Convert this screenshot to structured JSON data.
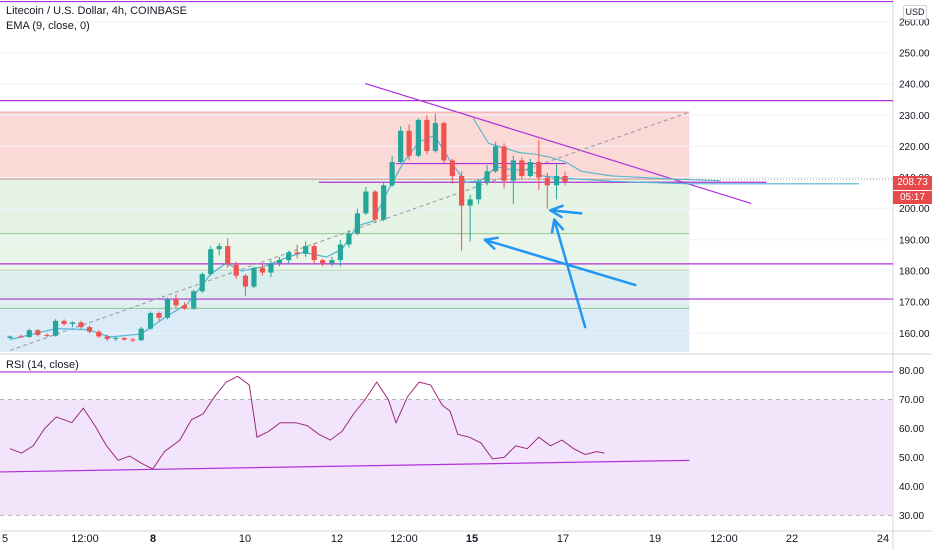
{
  "header": {
    "title": "Litecoin / U.S. Dollar, 4h, COINBASE",
    "ema_label": "EMA (9, close, 0)",
    "rsi_label": "RSI (14, close)",
    "currency": "USD",
    "last_price": "208.73",
    "countdown": "05:17"
  },
  "colors": {
    "bull": "#26a69a",
    "bear": "#ef5350",
    "ema": "#4fb6d3",
    "purple": "#b02fd9",
    "rsi_line": "#9c2a7a",
    "red_zone": "#fbd9d7",
    "green_zone": "#e5f3e4",
    "teal_zone": "#dcefee",
    "blue_zone": "#dcebf8",
    "rsi_band": "#f2e5fb",
    "arrow": "#2196f3",
    "price_tag": "#e64a4a"
  },
  "chart_data": {
    "type": "candlestick",
    "price_axis": {
      "ticks": [
        "260.00",
        "250.00",
        "240.00",
        "230.00",
        "220.00",
        "210.00",
        "200.00",
        "190.00",
        "180.00",
        "170.00",
        "160.00"
      ],
      "ylim": [
        154,
        267
      ]
    },
    "rsi_axis": {
      "ticks": [
        "80.00",
        "70.00",
        "60.00",
        "50.00",
        "40.00",
        "30.00"
      ],
      "ylim": [
        26,
        85
      ]
    },
    "time_axis": {
      "ticks": [
        "5",
        "12:00",
        "8",
        "10",
        "12",
        "12:00",
        "15",
        "17",
        "19",
        "12:00",
        "22",
        "24"
      ]
    },
    "candles": [
      [
        0.0,
        158.5,
        159.3,
        158.2,
        159.0
      ],
      [
        1.4,
        159.0,
        159.6,
        158.5,
        158.8
      ],
      [
        2.5,
        158.8,
        161.5,
        158.6,
        161.0
      ],
      [
        3.6,
        161.0,
        161.3,
        159.0,
        159.5
      ],
      [
        4.8,
        159.5,
        160.0,
        158.7,
        159.2
      ],
      [
        5.9,
        159.2,
        164.5,
        159.0,
        164.0
      ],
      [
        7.0,
        164.0,
        164.5,
        162.5,
        163.0
      ],
      [
        8.1,
        163.0,
        163.8,
        162.0,
        163.5
      ],
      [
        9.2,
        163.5,
        164.0,
        161.5,
        162.0
      ],
      [
        10.3,
        162.0,
        162.5,
        160.0,
        160.5
      ],
      [
        11.5,
        160.5,
        161.0,
        158.5,
        159.0
      ],
      [
        12.6,
        159.0,
        159.5,
        157.5,
        158.2
      ],
      [
        13.7,
        158.2,
        159.0,
        157.5,
        158.5
      ],
      [
        14.8,
        158.5,
        158.8,
        157.6,
        158.0
      ],
      [
        15.9,
        158.0,
        158.5,
        157.2,
        157.8
      ],
      [
        17.0,
        157.8,
        162.0,
        157.5,
        161.5
      ],
      [
        18.2,
        161.5,
        167.0,
        161.0,
        166.5
      ],
      [
        19.3,
        166.5,
        167.0,
        164.0,
        165.0
      ],
      [
        20.4,
        165.0,
        171.5,
        164.5,
        171.0
      ],
      [
        21.5,
        171.0,
        172.5,
        168.0,
        169.0
      ],
      [
        22.6,
        169.0,
        170.0,
        167.5,
        168.0
      ],
      [
        23.8,
        168.0,
        174.0,
        167.5,
        173.5
      ],
      [
        24.9,
        173.5,
        179.5,
        173.0,
        179.0
      ],
      [
        26.0,
        179.0,
        188.0,
        178.5,
        187.0
      ],
      [
        27.1,
        187.0,
        189.0,
        185.0,
        188.0
      ],
      [
        28.2,
        188.0,
        190.5,
        181.0,
        182.0
      ],
      [
        29.3,
        182.0,
        183.0,
        177.5,
        178.5
      ],
      [
        30.5,
        178.5,
        179.0,
        172.0,
        175.0
      ],
      [
        31.6,
        175.0,
        181.5,
        174.5,
        181.0
      ],
      [
        32.7,
        181.0,
        182.0,
        178.5,
        179.5
      ],
      [
        33.8,
        179.5,
        183.5,
        178.0,
        182.5
      ],
      [
        34.9,
        182.5,
        184.5,
        181.5,
        183.5
      ],
      [
        36.1,
        183.5,
        186.5,
        182.5,
        186.0
      ],
      [
        37.2,
        186.0,
        188.5,
        184.0,
        185.5
      ],
      [
        38.3,
        185.5,
        189.5,
        184.5,
        188.0
      ],
      [
        39.4,
        188.0,
        189.0,
        182.5,
        183.5
      ],
      [
        40.5,
        183.5,
        184.0,
        181.5,
        182.5
      ],
      [
        41.7,
        182.5,
        184.5,
        181.5,
        183.5
      ],
      [
        42.8,
        183.5,
        190.0,
        181.5,
        188.5
      ],
      [
        43.9,
        188.5,
        193.0,
        187.5,
        192.0
      ],
      [
        45.0,
        192.0,
        200.0,
        191.5,
        198.5
      ],
      [
        46.1,
        198.5,
        207.0,
        198.0,
        205.5
      ],
      [
        47.3,
        205.5,
        206.0,
        195.5,
        196.5
      ],
      [
        48.4,
        196.5,
        208.5,
        196.0,
        207.5
      ],
      [
        49.5,
        207.5,
        217.0,
        207.0,
        215.0
      ],
      [
        50.6,
        215.0,
        226.5,
        214.5,
        225.0
      ],
      [
        51.7,
        225.0,
        227.0,
        215.5,
        217.0
      ],
      [
        52.9,
        217.0,
        229.0,
        216.5,
        228.5
      ],
      [
        54.0,
        228.5,
        230.0,
        217.5,
        218.5
      ],
      [
        55.1,
        218.5,
        230.5,
        218.0,
        227.5
      ],
      [
        56.2,
        227.5,
        228.0,
        214.5,
        215.5
      ],
      [
        57.3,
        215.5,
        216.0,
        208.0,
        210.5
      ],
      [
        58.5,
        210.5,
        212.0,
        186.5,
        201.0
      ],
      [
        59.6,
        201.0,
        204.5,
        189.5,
        203.0
      ],
      [
        60.7,
        203.0,
        209.5,
        201.5,
        208.5
      ],
      [
        61.8,
        208.5,
        214.0,
        207.5,
        212.0
      ],
      [
        62.9,
        212.0,
        221.5,
        211.5,
        220.0
      ],
      [
        64.0,
        220.0,
        221.0,
        206.5,
        209.0
      ],
      [
        65.2,
        209.0,
        217.0,
        201.5,
        215.5
      ],
      [
        66.3,
        215.5,
        216.5,
        209.5,
        210.5
      ],
      [
        67.4,
        210.5,
        216.0,
        210.0,
        215.0
      ],
      [
        68.5,
        215.0,
        222.0,
        206.0,
        210.0
      ],
      [
        69.6,
        210.0,
        211.5,
        200.0,
        207.5
      ],
      [
        70.8,
        207.5,
        214.5,
        203.0,
        210.5
      ],
      [
        71.9,
        210.5,
        212.0,
        207.5,
        208.7
      ]
    ],
    "ema": [
      [
        0,
        158.0
      ],
      [
        6,
        161.5
      ],
      [
        10,
        161.2
      ],
      [
        13,
        158.8
      ],
      [
        17,
        159.8
      ],
      [
        20,
        165.0
      ],
      [
        23,
        169.5
      ],
      [
        26,
        179.0
      ],
      [
        28,
        182.5
      ],
      [
        30,
        180.0
      ],
      [
        33,
        181.5
      ],
      [
        36,
        184.5
      ],
      [
        38,
        186.0
      ],
      [
        41,
        184.5
      ],
      [
        43,
        187.0
      ],
      [
        45,
        194.5
      ],
      [
        47,
        196.0
      ],
      [
        49,
        206.0
      ],
      [
        51,
        215.0
      ],
      [
        53,
        221.5
      ],
      [
        55,
        223.5
      ],
      [
        57,
        215.5
      ],
      [
        59,
        208.5
      ],
      [
        61,
        209.0
      ],
      [
        63,
        213.5
      ],
      [
        65,
        212.5
      ],
      [
        67,
        212.5
      ],
      [
        69,
        210.5
      ],
      [
        71,
        210.0
      ],
      [
        72,
        209.8
      ],
      [
        78,
        208.8
      ],
      [
        88,
        208.0
      ],
      [
        110,
        208.0
      ]
    ],
    "rsi": [
      [
        0,
        53
      ],
      [
        1.5,
        51.5
      ],
      [
        3,
        54
      ],
      [
        4.5,
        60
      ],
      [
        6,
        64
      ],
      [
        8,
        62
      ],
      [
        9.5,
        67
      ],
      [
        11,
        61
      ],
      [
        12.5,
        54
      ],
      [
        14,
        49
      ],
      [
        15.5,
        50.5
      ],
      [
        17,
        48
      ],
      [
        18.5,
        46
      ],
      [
        20,
        52
      ],
      [
        22,
        56
      ],
      [
        23.5,
        63
      ],
      [
        25,
        65
      ],
      [
        26.5,
        71
      ],
      [
        28,
        76
      ],
      [
        29.5,
        78
      ],
      [
        31,
        75
      ],
      [
        32,
        57
      ],
      [
        33.5,
        59
      ],
      [
        35,
        62
      ],
      [
        37,
        62
      ],
      [
        38.5,
        61
      ],
      [
        40,
        58
      ],
      [
        41.5,
        56
      ],
      [
        43,
        59
      ],
      [
        44.5,
        65
      ],
      [
        46,
        70
      ],
      [
        47.5,
        76
      ],
      [
        49,
        70
      ],
      [
        50,
        62
      ],
      [
        51.5,
        71
      ],
      [
        53,
        76
      ],
      [
        54.5,
        75
      ],
      [
        56,
        68
      ],
      [
        57,
        66
      ],
      [
        58,
        58
      ],
      [
        59.5,
        57
      ],
      [
        61,
        55
      ],
      [
        62.5,
        49.5
      ],
      [
        64,
        50
      ],
      [
        65.5,
        54
      ],
      [
        67,
        53
      ],
      [
        68.5,
        57
      ],
      [
        70,
        54
      ],
      [
        71.5,
        56
      ],
      [
        73,
        53
      ],
      [
        74.5,
        51
      ],
      [
        76,
        52
      ],
      [
        77,
        51.5
      ]
    ],
    "rsi_trendline": {
      "from": [
        0,
        45
      ],
      "to": [
        88,
        49
      ]
    },
    "rsi_levels": [
      79.5,
      70,
      30
    ],
    "horizontal_levels": [
      266.5,
      234.7,
      182.3,
      171.0
    ],
    "fib_levels": [
      231.0,
      209.5,
      192.0,
      180.2,
      168.0
    ],
    "descending_trendline": {
      "from": [
        46,
        240.2
      ],
      "to": [
        96,
        201.7
      ]
    },
    "dashed_diagonal": {
      "from": [
        0,
        154.5
      ],
      "to": [
        88,
        231.0
      ]
    },
    "teal_step_line": [
      [
        60,
        229
      ],
      [
        62,
        221
      ],
      [
        64,
        219.5
      ],
      [
        66,
        218
      ],
      [
        68,
        217.5
      ],
      [
        70,
        216.5
      ],
      [
        72,
        215
      ],
      [
        74,
        212
      ],
      [
        78,
        210.5
      ],
      [
        86,
        209.5
      ],
      [
        92,
        209
      ]
    ],
    "short_levels": [
      {
        "from": 50,
        "to": 72,
        "y": 214.5
      },
      {
        "from": 40,
        "to": 98,
        "y": 208.5
      }
    ],
    "arrows": [
      {
        "from": [
          81,
          175.5
        ],
        "to": [
          61.5,
          190.0
        ]
      },
      {
        "from": [
          74.5,
          162.0
        ],
        "to": [
          70.5,
          196.5
        ]
      },
      {
        "from": [
          74.0,
          198.5
        ],
        "to": [
          70.0,
          199.5
        ]
      }
    ]
  }
}
